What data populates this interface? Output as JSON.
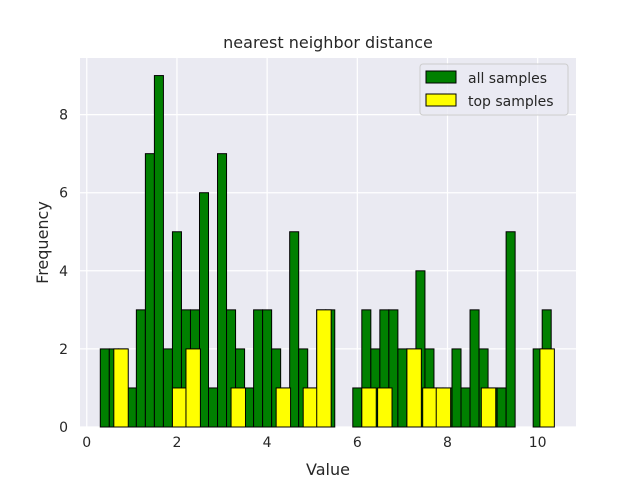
{
  "chart_data": {
    "type": "bar",
    "title": "nearest neighbor distance",
    "xlabel": "Value",
    "ylabel": "Frequency",
    "xlim": [
      -0.15,
      10.85
    ],
    "ylim": [
      0,
      9.45
    ],
    "xticks": [
      0,
      2,
      4,
      6,
      8,
      10
    ],
    "yticks": [
      0,
      2,
      4,
      6,
      8
    ],
    "grid": true,
    "legend_position": "top-right",
    "series": [
      {
        "name": "all samples",
        "color": "#008000",
        "edgecolor": "#000000",
        "bin_width": 0.2,
        "bins": [
          {
            "x": 0.3,
            "value": 2
          },
          {
            "x": 0.5,
            "value": 2
          },
          {
            "x": 0.7,
            "value": 2
          },
          {
            "x": 0.9,
            "value": 1
          },
          {
            "x": 1.1,
            "value": 3
          },
          {
            "x": 1.3,
            "value": 7
          },
          {
            "x": 1.5,
            "value": 9
          },
          {
            "x": 1.7,
            "value": 2
          },
          {
            "x": 1.9,
            "value": 5
          },
          {
            "x": 2.1,
            "value": 3
          },
          {
            "x": 2.3,
            "value": 3
          },
          {
            "x": 2.5,
            "value": 6
          },
          {
            "x": 2.7,
            "value": 1
          },
          {
            "x": 2.9,
            "value": 7
          },
          {
            "x": 3.1,
            "value": 3
          },
          {
            "x": 3.3,
            "value": 2
          },
          {
            "x": 3.5,
            "value": 1
          },
          {
            "x": 3.7,
            "value": 3
          },
          {
            "x": 3.9,
            "value": 3
          },
          {
            "x": 4.1,
            "value": 2
          },
          {
            "x": 4.3,
            "value": 1
          },
          {
            "x": 4.5,
            "value": 5
          },
          {
            "x": 4.7,
            "value": 2
          },
          {
            "x": 4.9,
            "value": 1
          },
          {
            "x": 5.1,
            "value": 3
          },
          {
            "x": 5.3,
            "value": 3
          },
          {
            "x": 5.9,
            "value": 1
          },
          {
            "x": 6.1,
            "value": 3
          },
          {
            "x": 6.3,
            "value": 2
          },
          {
            "x": 6.5,
            "value": 3
          },
          {
            "x": 6.7,
            "value": 3
          },
          {
            "x": 6.9,
            "value": 2
          },
          {
            "x": 7.1,
            "value": 2
          },
          {
            "x": 7.3,
            "value": 4
          },
          {
            "x": 7.5,
            "value": 2
          },
          {
            "x": 7.7,
            "value": 1
          },
          {
            "x": 7.9,
            "value": 1
          },
          {
            "x": 8.1,
            "value": 2
          },
          {
            "x": 8.3,
            "value": 1
          },
          {
            "x": 8.5,
            "value": 3
          },
          {
            "x": 8.7,
            "value": 2
          },
          {
            "x": 8.9,
            "value": 1
          },
          {
            "x": 9.1,
            "value": 1
          },
          {
            "x": 9.3,
            "value": 5
          },
          {
            "x": 9.9,
            "value": 2
          },
          {
            "x": 10.1,
            "value": 3
          }
        ]
      },
      {
        "name": "top samples",
        "color": "#ffff00",
        "edgecolor": "#000000",
        "bin_width": 0.32,
        "bins": [
          {
            "x": 0.6,
            "value": 2
          },
          {
            "x": 1.9,
            "value": 1
          },
          {
            "x": 2.2,
            "value": 2
          },
          {
            "x": 3.2,
            "value": 1
          },
          {
            "x": 4.2,
            "value": 1
          },
          {
            "x": 4.8,
            "value": 1
          },
          {
            "x": 5.1,
            "value": 3
          },
          {
            "x": 6.1,
            "value": 1
          },
          {
            "x": 6.45,
            "value": 1
          },
          {
            "x": 7.1,
            "value": 2
          },
          {
            "x": 7.45,
            "value": 1
          },
          {
            "x": 7.75,
            "value": 1
          },
          {
            "x": 8.75,
            "value": 1
          },
          {
            "x": 10.05,
            "value": 2
          }
        ]
      }
    ]
  }
}
